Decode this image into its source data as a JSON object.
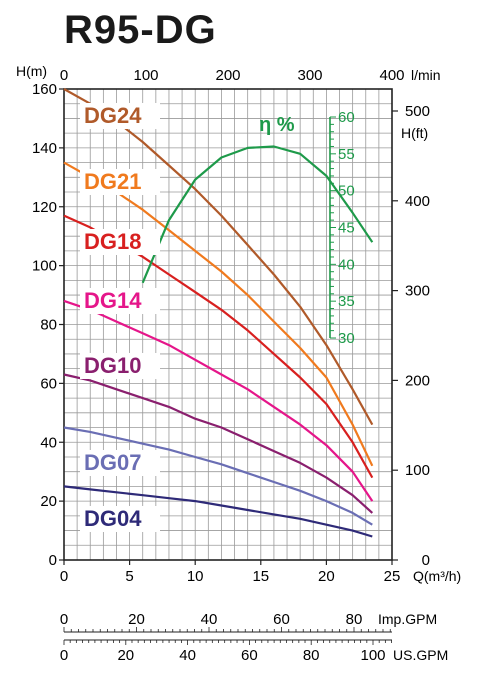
{
  "title": "R95-DG",
  "chart_data": {
    "type": "line",
    "title": "R95-DG",
    "x_primary": {
      "label": "Q(m³/h)",
      "range": [
        0,
        25
      ],
      "ticks": [
        0,
        5,
        10,
        15,
        20,
        25
      ]
    },
    "x_top": {
      "label": "l/min",
      "range": [
        0,
        400
      ],
      "ticks": [
        0,
        100,
        200,
        300,
        400
      ]
    },
    "x_imp_gpm": {
      "label": "Imp.GPM",
      "ticks": [
        0,
        20,
        40,
        60,
        80
      ]
    },
    "x_us_gpm": {
      "label": "US.GPM",
      "ticks": [
        0,
        20,
        40,
        60,
        80,
        100
      ]
    },
    "y_left": {
      "label": "H(m)",
      "range": [
        0,
        160
      ],
      "ticks": [
        0,
        20,
        40,
        60,
        80,
        100,
        120,
        140,
        160
      ]
    },
    "y_right": {
      "label": "H(ft)",
      "ticks": [
        0,
        100,
        200,
        300,
        400,
        500
      ]
    },
    "y_efficiency": {
      "label": "η %",
      "ticks": [
        30,
        35,
        40,
        45,
        50,
        55,
        60
      ]
    },
    "grid": true,
    "series": [
      {
        "name": "DG24",
        "color": "#b05a2a",
        "x": [
          0,
          2,
          4,
          6,
          8,
          10,
          12,
          14,
          16,
          18,
          20,
          22,
          23.5
        ],
        "y": [
          160,
          155,
          149,
          142,
          134,
          126,
          117,
          107,
          97,
          86,
          73,
          58,
          46
        ]
      },
      {
        "name": "DG21",
        "color": "#f07a1e",
        "x": [
          0,
          2,
          4,
          6,
          8,
          10,
          12,
          14,
          16,
          18,
          20,
          22,
          23.5
        ],
        "y": [
          135,
          130,
          125,
          119,
          112,
          105,
          98,
          90,
          81,
          72,
          62,
          46,
          32
        ]
      },
      {
        "name": "DG18",
        "color": "#d8201f",
        "x": [
          0,
          2,
          4,
          6,
          8,
          10,
          12,
          14,
          16,
          18,
          20,
          22,
          23.5
        ],
        "y": [
          117,
          113,
          108,
          103,
          97,
          91,
          85,
          78,
          70,
          62,
          53,
          40,
          28
        ]
      },
      {
        "name": "DG14",
        "color": "#e5168a",
        "x": [
          0,
          2,
          4,
          6,
          8,
          10,
          12,
          14,
          16,
          18,
          20,
          22,
          23.5
        ],
        "y": [
          88,
          85,
          81,
          77,
          73,
          68,
          63,
          58,
          52,
          46,
          39,
          30,
          20
        ]
      },
      {
        "name": "DG10",
        "color": "#8a1f6e",
        "x": [
          0,
          2,
          4,
          6,
          8,
          10,
          12,
          14,
          16,
          18,
          20,
          22,
          23.5
        ],
        "y": [
          63,
          61,
          58,
          55,
          52,
          48,
          45,
          41,
          37,
          33,
          28,
          22,
          16
        ]
      },
      {
        "name": "DG07",
        "color": "#6a6eb4",
        "x": [
          0,
          2,
          4,
          6,
          8,
          10,
          12,
          14,
          16,
          18,
          20,
          22,
          23.5
        ],
        "y": [
          45,
          43.5,
          41.5,
          39.5,
          37.5,
          35,
          32.5,
          29.5,
          26.5,
          23.5,
          20,
          16,
          12
        ]
      },
      {
        "name": "DG04",
        "color": "#2e2a78",
        "x": [
          0,
          2,
          4,
          6,
          8,
          10,
          12,
          14,
          16,
          18,
          20,
          22,
          23.5
        ],
        "y": [
          25,
          24,
          23,
          22,
          21,
          20,
          18.5,
          17,
          15.5,
          14,
          12,
          10,
          8
        ]
      },
      {
        "name": "η %",
        "color": "#1e9a4a",
        "axis": "efficiency",
        "x": [
          6,
          8,
          10,
          12,
          14,
          16,
          18,
          20,
          22,
          23.5
        ],
        "y": [
          37.5,
          46,
          51.5,
          54.5,
          55.8,
          56,
          55,
          52,
          47,
          43
        ]
      }
    ]
  }
}
